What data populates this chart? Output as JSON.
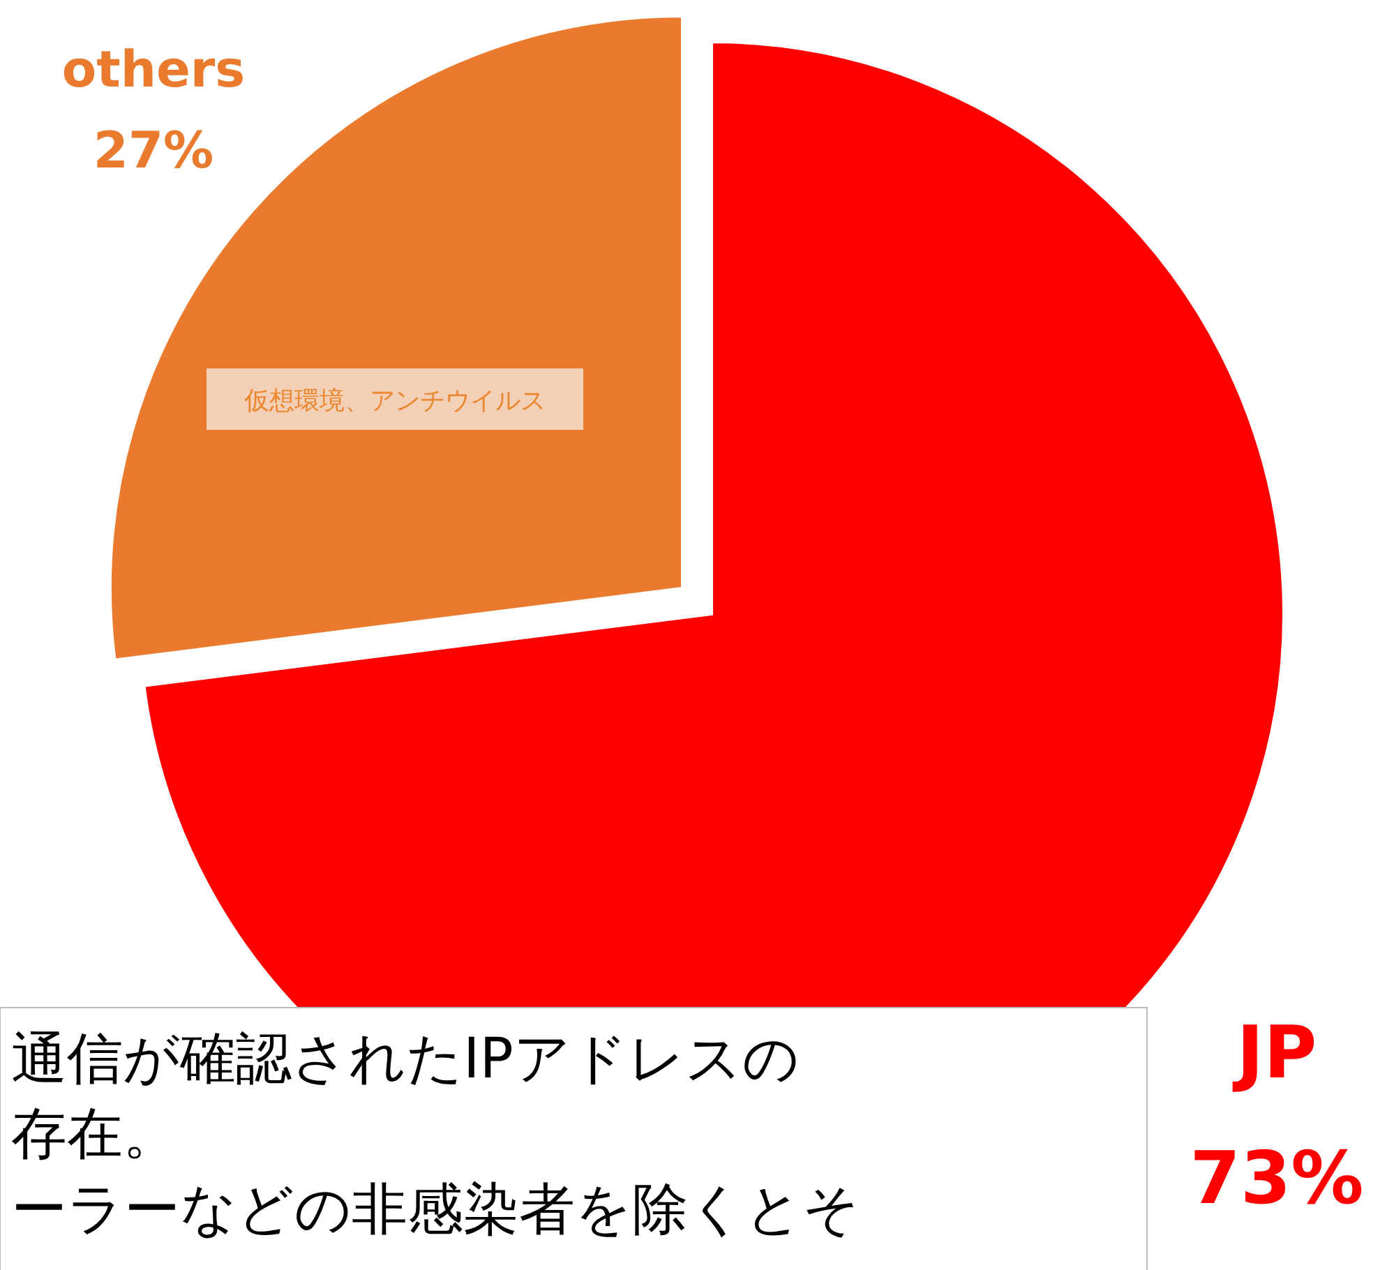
{
  "chart_data": {
    "type": "pie",
    "categories": [
      "others",
      "JP"
    ],
    "values": [
      27,
      73
    ],
    "value_labels": [
      "27%",
      "73%"
    ],
    "colors": [
      "#e97a2e",
      "#ff0000"
    ],
    "annotations": [
      "仮想環境、アンチウイルス",
      "通信が確認されたIPアドレスの",
      "存在。",
      "ーラーなどの非感染者を除くとそ"
    ]
  }
}
